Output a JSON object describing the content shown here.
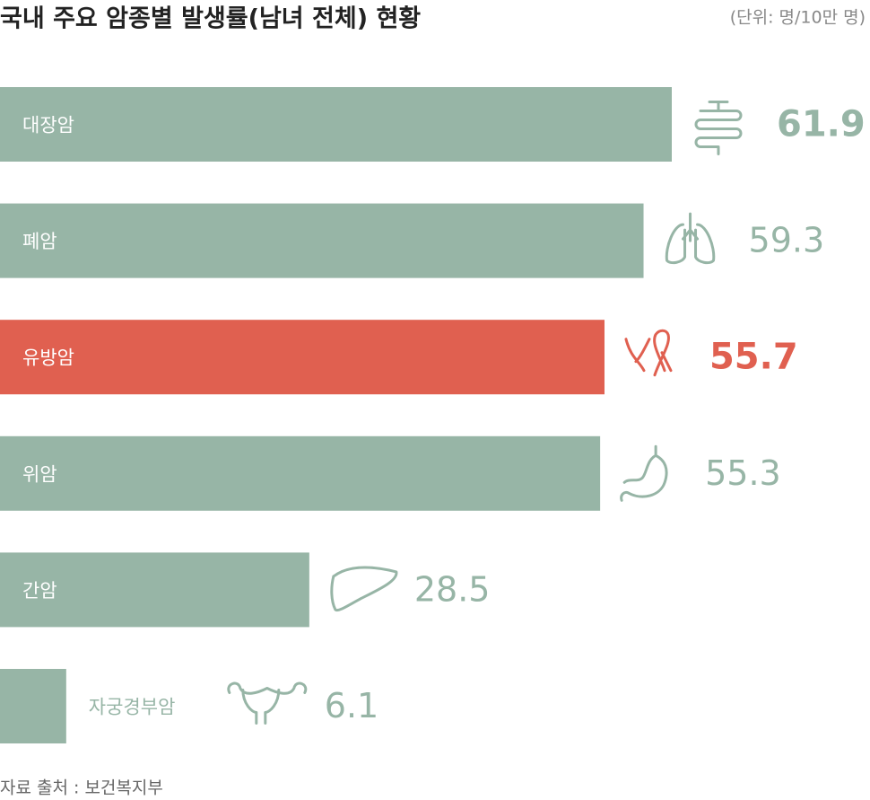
{
  "chart_data": {
    "type": "bar",
    "orientation": "horizontal",
    "title": "국내 주요 암종별 발생률(남녀 전체) 현황",
    "unit_note": "(단위: 명/10만 명)",
    "source": "자료 출처 : 보건복지부",
    "categories": [
      "대장암",
      "폐암",
      "유방암",
      "위암",
      "간암",
      "자궁경부암"
    ],
    "values": [
      61.9,
      59.3,
      55.7,
      55.3,
      28.5,
      6.1
    ],
    "colors": [
      "#97b5a6",
      "#97b5a6",
      "#e06050",
      "#97b5a6",
      "#97b5a6",
      "#97b5a6"
    ]
  }
}
